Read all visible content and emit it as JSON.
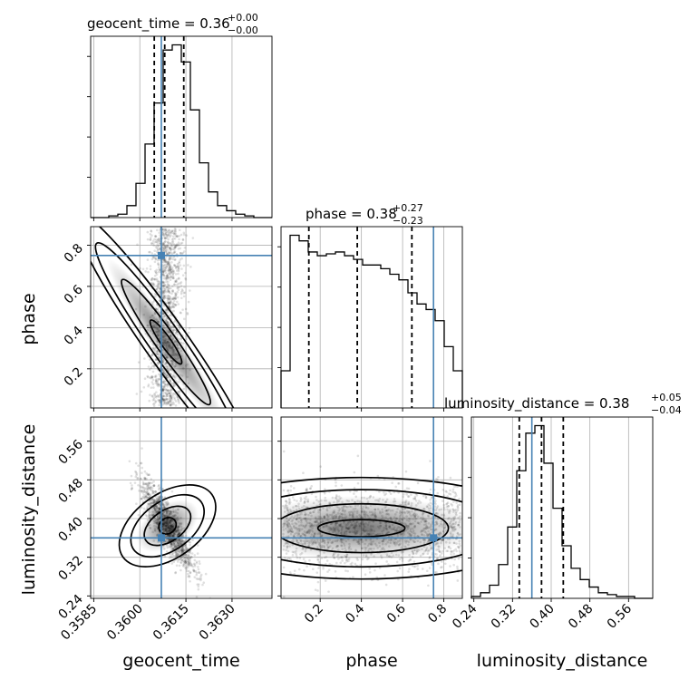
{
  "chart_data": {
    "type": "corner",
    "parameters": [
      "geocent_time",
      "phase",
      "luminosity_distance"
    ],
    "truth": {
      "geocent_time": 0.3607,
      "phase": 0.75,
      "luminosity_distance": 0.36
    },
    "colors": {
      "truth": "#4682b4",
      "hist": "#000000",
      "grid": "#b0b0b0"
    },
    "titles": [
      {
        "prefix": "geocent_time = 0.36",
        "plus": "+0.00",
        "minus": "−0.00"
      },
      {
        "prefix": "phase = 0.38",
        "plus": "+0.27",
        "minus": "−0.23"
      },
      {
        "prefix": "luminosity_distance = 0.38",
        "plus": "+0.05",
        "minus": "−0.04"
      }
    ],
    "ranges": {
      "geocent_time": [
        0.3584,
        0.3643
      ],
      "phase": [
        0.01,
        0.89
      ],
      "luminosity_distance": [
        0.235,
        0.61
      ]
    },
    "ticks": {
      "geocent_time": {
        "values": [
          0.3585,
          0.36,
          0.3615,
          0.363
        ],
        "labels": [
          "0.3585",
          "0.3600",
          "0.3615",
          "0.3630"
        ]
      },
      "phase": {
        "values": [
          0.2,
          0.4,
          0.6,
          0.8
        ],
        "labels": [
          "0.2",
          "0.4",
          "0.6",
          "0.8"
        ]
      },
      "luminosity_distance": {
        "values": [
          0.24,
          0.32,
          0.4,
          0.48,
          0.56
        ],
        "labels": [
          "0.24",
          "0.32",
          "0.40",
          "0.48",
          "0.56"
        ]
      }
    },
    "quantiles": {
      "geocent_time": [
        0.36047,
        0.36081,
        0.36143
      ],
      "phase": [
        0.145,
        0.38,
        0.645
      ],
      "luminosity_distance": [
        0.334,
        0.38,
        0.425
      ]
    },
    "histograms": {
      "geocent_time": [
        0,
        0,
        1,
        2,
        7,
        20,
        43,
        67,
        98,
        101,
        91,
        63,
        32,
        15,
        7,
        4,
        2,
        1,
        0,
        0
      ],
      "phase": [
        20,
        93,
        90,
        84,
        82,
        83,
        84,
        82,
        80,
        77,
        77,
        75,
        72,
        69,
        62,
        56,
        53,
        47,
        33,
        20
      ],
      "luminosity_distance": [
        1,
        3,
        7,
        18,
        38,
        68,
        88,
        92,
        72,
        48,
        28,
        16,
        10,
        6,
        3,
        2,
        1,
        1,
        0,
        0
      ]
    },
    "hist_bins": {
      "geocent_time": [
        0.3584,
        0.3643
      ],
      "phase": [
        0.01,
        0.89
      ],
      "luminosity_distance": [
        0.235,
        0.61
      ]
    }
  }
}
